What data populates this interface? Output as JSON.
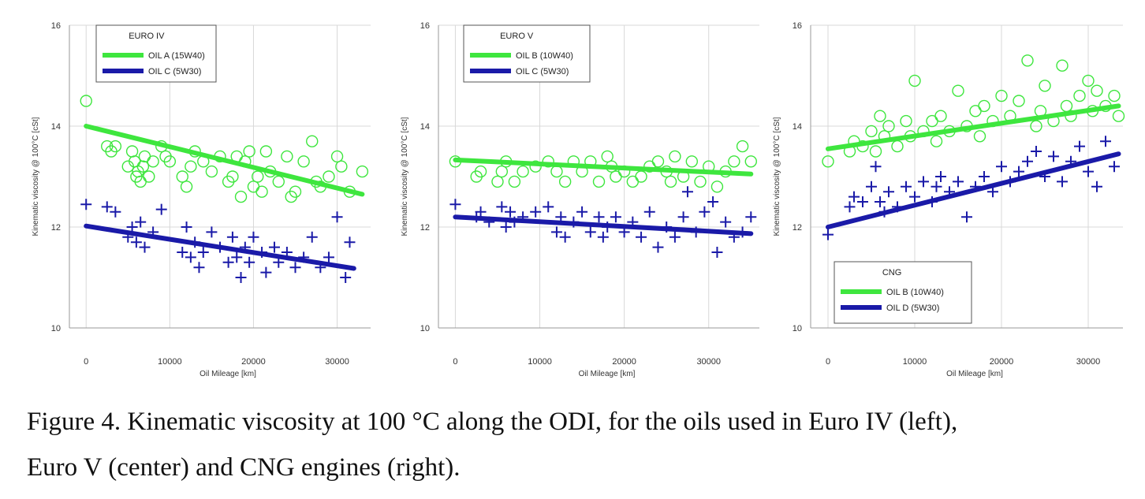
{
  "chart_data": [
    {
      "type": "scatter",
      "xlabel": "Oil Mileage [km]",
      "ylabel": "Kinematic viscosity @ 100°C [cSt]",
      "xlim": [
        -2000,
        34000
      ],
      "ylim": [
        10,
        16
      ],
      "xticks": [
        0,
        10000,
        20000,
        30000
      ],
      "yticks": [
        10,
        12,
        14,
        16
      ],
      "legend": {
        "title": "EURO IV",
        "placement": "top-left"
      },
      "series": [
        {
          "name": "OIL A (15W40)",
          "color": "#3ee63e",
          "marker": "circle",
          "fit": {
            "x": [
              0,
              33000
            ],
            "y": [
              14.0,
              12.65
            ]
          },
          "points": [
            [
              0,
              14.5
            ],
            [
              2500,
              13.6
            ],
            [
              3000,
              13.5
            ],
            [
              3500,
              13.6
            ],
            [
              5000,
              13.2
            ],
            [
              5500,
              13.5
            ],
            [
              5800,
              13.3
            ],
            [
              6000,
              13.0
            ],
            [
              6200,
              13.1
            ],
            [
              6500,
              12.9
            ],
            [
              6800,
              13.2
            ],
            [
              7000,
              13.4
            ],
            [
              7500,
              13.0
            ],
            [
              8000,
              13.3
            ],
            [
              9000,
              13.6
            ],
            [
              9500,
              13.4
            ],
            [
              10000,
              13.3
            ],
            [
              11500,
              13.0
            ],
            [
              12000,
              12.8
            ],
            [
              12500,
              13.2
            ],
            [
              13000,
              13.5
            ],
            [
              14000,
              13.3
            ],
            [
              15000,
              13.1
            ],
            [
              16000,
              13.4
            ],
            [
              17000,
              12.9
            ],
            [
              17500,
              13.0
            ],
            [
              18000,
              13.4
            ],
            [
              18500,
              12.6
            ],
            [
              19000,
              13.3
            ],
            [
              19500,
              13.5
            ],
            [
              20000,
              12.8
            ],
            [
              20500,
              13.0
            ],
            [
              21000,
              12.7
            ],
            [
              21500,
              13.5
            ],
            [
              22000,
              13.1
            ],
            [
              23000,
              12.9
            ],
            [
              24000,
              13.4
            ],
            [
              24500,
              12.6
            ],
            [
              25000,
              12.7
            ],
            [
              26000,
              13.3
            ],
            [
              27000,
              13.7
            ],
            [
              27500,
              12.9
            ],
            [
              28000,
              12.8
            ],
            [
              29000,
              13.0
            ],
            [
              30000,
              13.4
            ],
            [
              30500,
              13.2
            ],
            [
              31500,
              12.7
            ],
            [
              33000,
              13.1
            ]
          ]
        },
        {
          "name": "OIL C (5W30)",
          "color": "#1a1aa8",
          "marker": "plus",
          "fit": {
            "x": [
              0,
              32000
            ],
            "y": [
              12.02,
              11.18
            ]
          },
          "points": [
            [
              0,
              12.45
            ],
            [
              2500,
              12.4
            ],
            [
              3500,
              12.3
            ],
            [
              5000,
              11.8
            ],
            [
              5500,
              12.0
            ],
            [
              6000,
              11.7
            ],
            [
              6500,
              12.1
            ],
            [
              7000,
              11.6
            ],
            [
              8000,
              11.9
            ],
            [
              9000,
              12.35
            ],
            [
              11500,
              11.5
            ],
            [
              12000,
              12.0
            ],
            [
              12500,
              11.4
            ],
            [
              13000,
              11.7
            ],
            [
              13500,
              11.2
            ],
            [
              14000,
              11.5
            ],
            [
              15000,
              11.9
            ],
            [
              16000,
              11.6
            ],
            [
              17000,
              11.3
            ],
            [
              17500,
              11.8
            ],
            [
              18000,
              11.4
            ],
            [
              18500,
              11.0
            ],
            [
              19000,
              11.6
            ],
            [
              19500,
              11.3
            ],
            [
              20000,
              11.8
            ],
            [
              21000,
              11.5
            ],
            [
              21500,
              11.1
            ],
            [
              22500,
              11.6
            ],
            [
              23000,
              11.3
            ],
            [
              24000,
              11.5
            ],
            [
              25000,
              11.2
            ],
            [
              26000,
              11.4
            ],
            [
              27000,
              11.8
            ],
            [
              28000,
              11.2
            ],
            [
              29000,
              11.4
            ],
            [
              30000,
              12.2
            ],
            [
              31000,
              11.0
            ],
            [
              31500,
              11.7
            ]
          ]
        }
      ]
    },
    {
      "type": "scatter",
      "xlabel": "Oil Mileage [km]",
      "ylabel": "Kinematic viscosity @ 100°C [cSt]",
      "xlim": [
        -2000,
        36000
      ],
      "ylim": [
        10,
        16
      ],
      "xticks": [
        0,
        10000,
        20000,
        30000
      ],
      "yticks": [
        10,
        12,
        14,
        16
      ],
      "legend": {
        "title": "EURO V",
        "placement": "top-left"
      },
      "series": [
        {
          "name": "OIL B (10W40)",
          "color": "#3ee63e",
          "marker": "circle",
          "fit": {
            "x": [
              0,
              35000
            ],
            "y": [
              13.33,
              13.05
            ]
          },
          "points": [
            [
              0,
              13.3
            ],
            [
              2500,
              13.0
            ],
            [
              3000,
              13.1
            ],
            [
              5000,
              12.9
            ],
            [
              5500,
              13.1
            ],
            [
              6000,
              13.3
            ],
            [
              7000,
              12.9
            ],
            [
              8000,
              13.1
            ],
            [
              9500,
              13.2
            ],
            [
              11000,
              13.3
            ],
            [
              12000,
              13.1
            ],
            [
              13000,
              12.9
            ],
            [
              14000,
              13.3
            ],
            [
              15000,
              13.1
            ],
            [
              16000,
              13.3
            ],
            [
              17000,
              12.9
            ],
            [
              18000,
              13.4
            ],
            [
              18500,
              13.2
            ],
            [
              19000,
              13.0
            ],
            [
              20000,
              13.1
            ],
            [
              21000,
              12.9
            ],
            [
              22000,
              13.0
            ],
            [
              23000,
              13.2
            ],
            [
              24000,
              13.3
            ],
            [
              25000,
              13.1
            ],
            [
              25500,
              12.9
            ],
            [
              26000,
              13.4
            ],
            [
              27000,
              13.0
            ],
            [
              28000,
              13.3
            ],
            [
              29000,
              12.9
            ],
            [
              30000,
              13.2
            ],
            [
              31000,
              12.8
            ],
            [
              32000,
              13.1
            ],
            [
              33000,
              13.3
            ],
            [
              34000,
              13.6
            ],
            [
              35000,
              13.3
            ]
          ]
        },
        {
          "name": "OIL C (5W30)",
          "color": "#1a1aa8",
          "marker": "plus",
          "fit": {
            "x": [
              0,
              35000
            ],
            "y": [
              12.2,
              11.87
            ]
          },
          "points": [
            [
              0,
              12.45
            ],
            [
              2500,
              12.2
            ],
            [
              3000,
              12.3
            ],
            [
              4000,
              12.1
            ],
            [
              5500,
              12.4
            ],
            [
              6000,
              12.0
            ],
            [
              6500,
              12.3
            ],
            [
              7000,
              12.1
            ],
            [
              8000,
              12.2
            ],
            [
              9500,
              12.3
            ],
            [
              11000,
              12.4
            ],
            [
              12000,
              11.9
            ],
            [
              12500,
              12.2
            ],
            [
              13000,
              11.8
            ],
            [
              14000,
              12.1
            ],
            [
              15000,
              12.3
            ],
            [
              16000,
              11.9
            ],
            [
              17000,
              12.2
            ],
            [
              17500,
              11.8
            ],
            [
              18000,
              12.0
            ],
            [
              19000,
              12.2
            ],
            [
              20000,
              11.9
            ],
            [
              21000,
              12.1
            ],
            [
              22000,
              11.8
            ],
            [
              23000,
              12.3
            ],
            [
              24000,
              11.6
            ],
            [
              25000,
              12.0
            ],
            [
              26000,
              11.8
            ],
            [
              27000,
              12.2
            ],
            [
              27500,
              12.7
            ],
            [
              28500,
              11.9
            ],
            [
              29500,
              12.3
            ],
            [
              30500,
              12.5
            ],
            [
              31000,
              11.5
            ],
            [
              32000,
              12.1
            ],
            [
              33000,
              11.8
            ],
            [
              34000,
              11.9
            ],
            [
              35000,
              12.2
            ]
          ]
        }
      ]
    },
    {
      "type": "scatter",
      "xlabel": "Oil Mileage [km]",
      "ylabel": "Kinematic viscosity @ 100°C [cSt]",
      "xlim": [
        -2000,
        34000
      ],
      "ylim": [
        10,
        16
      ],
      "xticks": [
        0,
        10000,
        20000,
        30000
      ],
      "yticks": [
        10,
        12,
        14,
        16
      ],
      "legend": {
        "title": "CNG",
        "placement": "bottom-left"
      },
      "series": [
        {
          "name": "OIL B (10W40)",
          "color": "#3ee63e",
          "marker": "circle",
          "fit": {
            "x": [
              0,
              33500
            ],
            "y": [
              13.55,
              14.4
            ]
          },
          "points": [
            [
              0,
              13.3
            ],
            [
              2500,
              13.5
            ],
            [
              3000,
              13.7
            ],
            [
              4000,
              13.6
            ],
            [
              5000,
              13.9
            ],
            [
              5500,
              13.5
            ],
            [
              6000,
              14.2
            ],
            [
              6500,
              13.8
            ],
            [
              7000,
              14.0
            ],
            [
              8000,
              13.6
            ],
            [
              9000,
              14.1
            ],
            [
              9500,
              13.8
            ],
            [
              10000,
              14.9
            ],
            [
              11000,
              13.9
            ],
            [
              12000,
              14.1
            ],
            [
              12500,
              13.7
            ],
            [
              13000,
              14.2
            ],
            [
              14000,
              13.9
            ],
            [
              15000,
              14.7
            ],
            [
              16000,
              14.0
            ],
            [
              17000,
              14.3
            ],
            [
              17500,
              13.8
            ],
            [
              18000,
              14.4
            ],
            [
              19000,
              14.1
            ],
            [
              20000,
              14.6
            ],
            [
              21000,
              14.2
            ],
            [
              22000,
              14.5
            ],
            [
              23000,
              15.3
            ],
            [
              24000,
              14.0
            ],
            [
              24500,
              14.3
            ],
            [
              25000,
              14.8
            ],
            [
              26000,
              14.1
            ],
            [
              27000,
              15.2
            ],
            [
              27500,
              14.4
            ],
            [
              28000,
              14.2
            ],
            [
              29000,
              14.6
            ],
            [
              30000,
              14.9
            ],
            [
              30500,
              14.3
            ],
            [
              31000,
              14.7
            ],
            [
              32000,
              14.4
            ],
            [
              33000,
              14.6
            ],
            [
              33500,
              14.2
            ]
          ]
        },
        {
          "name": "OIL D (5W30)",
          "color": "#1a1aa8",
          "marker": "plus",
          "fit": {
            "x": [
              0,
              33500
            ],
            "y": [
              12.0,
              13.45
            ]
          },
          "points": [
            [
              0,
              11.85
            ],
            [
              2500,
              12.4
            ],
            [
              3000,
              12.6
            ],
            [
              4000,
              12.5
            ],
            [
              5000,
              12.8
            ],
            [
              5500,
              13.2
            ],
            [
              6000,
              12.5
            ],
            [
              6500,
              12.3
            ],
            [
              7000,
              12.7
            ],
            [
              8000,
              12.4
            ],
            [
              9000,
              12.8
            ],
            [
              10000,
              12.6
            ],
            [
              11000,
              12.9
            ],
            [
              12000,
              12.5
            ],
            [
              12500,
              12.8
            ],
            [
              13000,
              13.0
            ],
            [
              14000,
              12.7
            ],
            [
              15000,
              12.9
            ],
            [
              16000,
              12.2
            ],
            [
              17000,
              12.8
            ],
            [
              18000,
              13.0
            ],
            [
              19000,
              12.7
            ],
            [
              20000,
              13.2
            ],
            [
              21000,
              12.9
            ],
            [
              22000,
              13.1
            ],
            [
              23000,
              13.3
            ],
            [
              24000,
              13.5
            ],
            [
              25000,
              13.0
            ],
            [
              26000,
              13.4
            ],
            [
              27000,
              12.9
            ],
            [
              28000,
              13.3
            ],
            [
              29000,
              13.6
            ],
            [
              30000,
              13.1
            ],
            [
              31000,
              12.8
            ],
            [
              32000,
              13.7
            ],
            [
              33000,
              13.2
            ]
          ]
        }
      ]
    }
  ],
  "caption": {
    "line1": "Figure 4. Kinematic viscosity at 100 °C along the ODI, for the oils used in Euro IV (left),",
    "line2": "Euro V (center) and CNG engines (right)."
  }
}
